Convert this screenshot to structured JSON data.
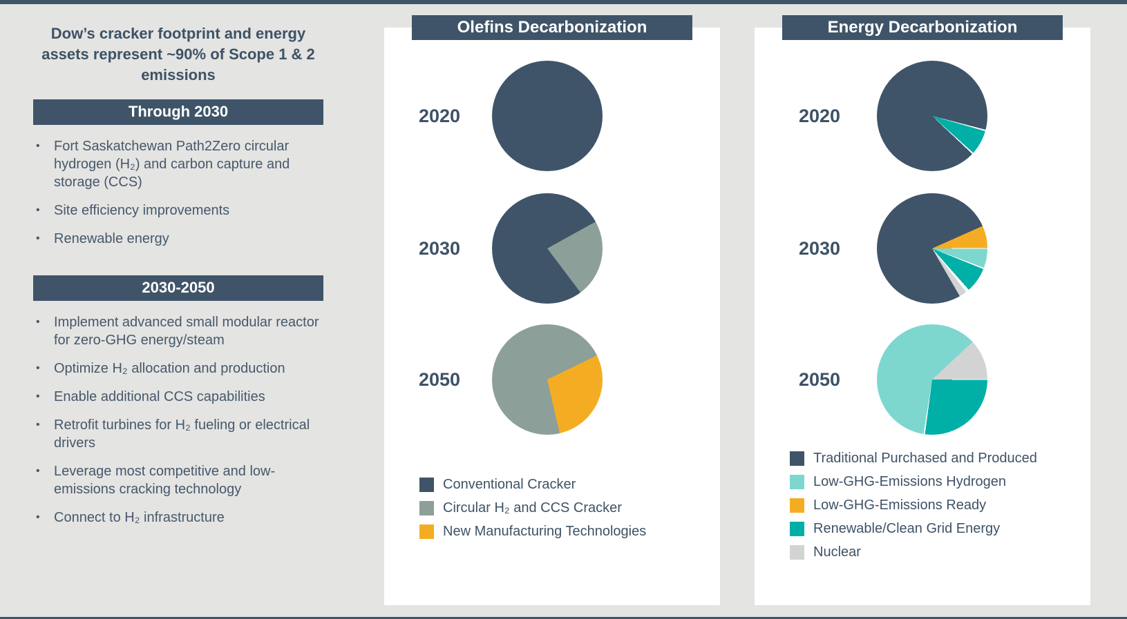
{
  "colors": {
    "dark": "#3F5468",
    "sage": "#8C9F98",
    "amber": "#F4AD22",
    "aqua": "#7DD7CF",
    "teal": "#00AFA6",
    "gray": "#D2D3D3",
    "white": "#FFFFFF",
    "background": "#E4E4E2",
    "text": "#3E5266"
  },
  "left_panel": {
    "title": "Dow’s cracker footprint and energy assets represent ~90% of Scope 1 & 2 emissions",
    "sections": [
      {
        "header": "Through 2030",
        "bullets": [
          "Fort Saskatchewan Path2Zero circular hydrogen (H₂) and carbon capture and storage (CCS)",
          "Site efficiency improvements",
          "Renewable energy"
        ]
      },
      {
        "header": "2030-2050",
        "bullets": [
          "Implement advanced small modular reactor for zero-GHG energy/steam",
          "Optimize H₂ allocation and production",
          "Enable additional CCS capabilities",
          "Retrofit turbines for H₂ fueling or electrical drivers",
          "Leverage most competitive and low-emissions cracking technology",
          "Connect to H₂ infrastructure"
        ]
      }
    ]
  },
  "chart_data": [
    {
      "type": "pie",
      "title": "Olefins Decarbonization",
      "legend": [
        {
          "label": "Conventional Cracker",
          "color": "dark"
        },
        {
          "label": "Circular H₂ and CCS Cracker",
          "color": "sage"
        },
        {
          "label": "New Manufacturing Technologies",
          "color": "amber"
        }
      ],
      "pies": [
        {
          "year": "2020",
          "values": {
            "Conventional Cracker": 100
          },
          "segments": [
            {
              "c": "dark",
              "a": 0,
              "b": 360
            }
          ]
        },
        {
          "year": "2030",
          "values": {
            "Conventional Cracker": 77,
            "Circular H₂ and CCS Cracker": 23
          },
          "segments": [
            {
              "c": "dark",
              "a": 0,
              "b": 61
            },
            {
              "c": "sage",
              "a": 61,
              "b": 143
            },
            {
              "c": "dark",
              "a": 143,
              "b": 360
            }
          ]
        },
        {
          "year": "2050",
          "values": {
            "Circular H₂ and CCS Cracker": 71,
            "New Manufacturing Technologies": 29
          },
          "segments": [
            {
              "c": "sage",
              "a": 0,
              "b": 64
            },
            {
              "c": "amber",
              "a": 64,
              "b": 167
            },
            {
              "c": "sage",
              "a": 167,
              "b": 360
            }
          ]
        }
      ]
    },
    {
      "type": "pie",
      "title": "Energy Decarbonization",
      "legend": [
        {
          "label": "Traditional Purchased and Produced",
          "color": "dark"
        },
        {
          "label": "Low-GHG-Emissions Hydrogen",
          "color": "aqua"
        },
        {
          "label": "Low-GHG-Emissions Ready",
          "color": "amber"
        },
        {
          "label": "Renewable/Clean Grid Energy",
          "color": "teal"
        },
        {
          "label": "Nuclear",
          "color": "gray"
        }
      ],
      "pies": [
        {
          "year": "2020",
          "values": {
            "Traditional Purchased and Produced": 93,
            "Renewable/Clean Grid Energy": 7
          },
          "segments": [
            {
              "c": "dark",
              "a": 0,
              "b": 104.5
            },
            {
              "c": "white",
              "a": 104.5,
              "b": 106
            },
            {
              "c": "teal",
              "a": 106,
              "b": 132
            },
            {
              "c": "white",
              "a": 132,
              "b": 133.5
            },
            {
              "c": "dark",
              "a": 133.5,
              "b": 360
            }
          ]
        },
        {
          "year": "2030",
          "values": {
            "Traditional Purchased and Produced": 78,
            "Low-GHG-Emissions Ready": 7,
            "Low-GHG-Emissions Hydrogen": 6,
            "Renewable/Clean Grid Energy": 7,
            "Nuclear": 2
          },
          "segments": [
            {
              "c": "dark",
              "a": 0,
              "b": 66
            },
            {
              "c": "amber",
              "a": 66,
              "b": 89.5
            },
            {
              "c": "white",
              "a": 89.5,
              "b": 90.5
            },
            {
              "c": "aqua",
              "a": 90.5,
              "b": 110.5
            },
            {
              "c": "white",
              "a": 110.5,
              "b": 112
            },
            {
              "c": "teal",
              "a": 112,
              "b": 138.5
            },
            {
              "c": "white",
              "a": 138.5,
              "b": 142
            },
            {
              "c": "gray",
              "a": 142,
              "b": 150
            },
            {
              "c": "dark",
              "a": 150,
              "b": 360
            }
          ]
        },
        {
          "year": "2050",
          "values": {
            "Low-GHG-Emissions Hydrogen": 61,
            "Nuclear": 12,
            "Renewable/Clean Grid Energy": 27
          },
          "segments": [
            {
              "c": "aqua",
              "a": 0,
              "b": 47
            },
            {
              "c": "gray",
              "a": 47,
              "b": 89.5
            },
            {
              "c": "white",
              "a": 89.5,
              "b": 90.5
            },
            {
              "c": "teal",
              "a": 90.5,
              "b": 187.5
            },
            {
              "c": "white",
              "a": 187.5,
              "b": 189
            },
            {
              "c": "aqua",
              "a": 189,
              "b": 360
            }
          ]
        }
      ]
    }
  ]
}
